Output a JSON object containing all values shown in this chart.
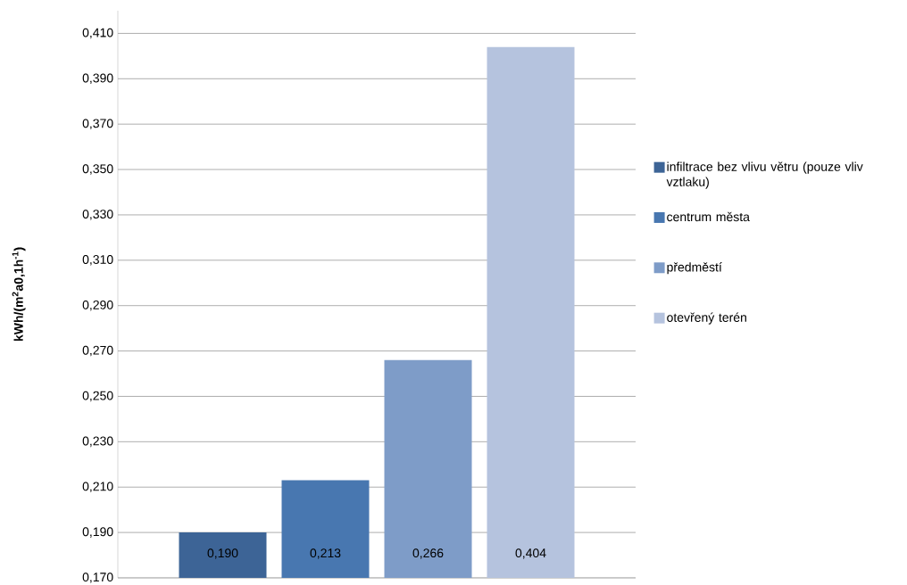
{
  "chart_data": {
    "type": "bar",
    "ylabel": "kWh/(m$^{2}$a0,1h$^{-1}$)",
    "categories": [
      null
    ],
    "series": [
      {
        "name": "infiltrace bez vlivu větru (pouze vliv vztlaku)",
        "color": "#3d6496",
        "values": [
          0.19
        ],
        "value_labels": [
          "0,190"
        ]
      },
      {
        "name": "centrum města",
        "color": "#4877b0",
        "values": [
          0.213
        ],
        "value_labels": [
          "0,213"
        ]
      },
      {
        "name": "předměstí",
        "color": "#7e9cc8",
        "values": [
          0.266
        ],
        "value_labels": [
          "0,266"
        ]
      },
      {
        "name": "otevřený terén",
        "color": "#b5c3de",
        "values": [
          0.404
        ],
        "value_labels": [
          "0,404"
        ]
      }
    ],
    "ylim": [
      0.17,
      0.42
    ],
    "yticks": [
      {
        "value": 0.17,
        "label": "0,170"
      },
      {
        "value": 0.19,
        "label": "0,190"
      },
      {
        "value": 0.21,
        "label": "0,210"
      },
      {
        "value": 0.23,
        "label": "0,230"
      },
      {
        "value": 0.25,
        "label": "0,250"
      },
      {
        "value": 0.27,
        "label": "0,270"
      },
      {
        "value": 0.29,
        "label": "0,290"
      },
      {
        "value": 0.31,
        "label": "0,310"
      },
      {
        "value": 0.33,
        "label": "0,330"
      },
      {
        "value": 0.35,
        "label": "0,350"
      },
      {
        "value": 0.37,
        "label": "0,370"
      },
      {
        "value": 0.39,
        "label": "0,390"
      },
      {
        "value": 0.41,
        "label": "0,410"
      }
    ],
    "grid": "y",
    "legend": "right"
  }
}
